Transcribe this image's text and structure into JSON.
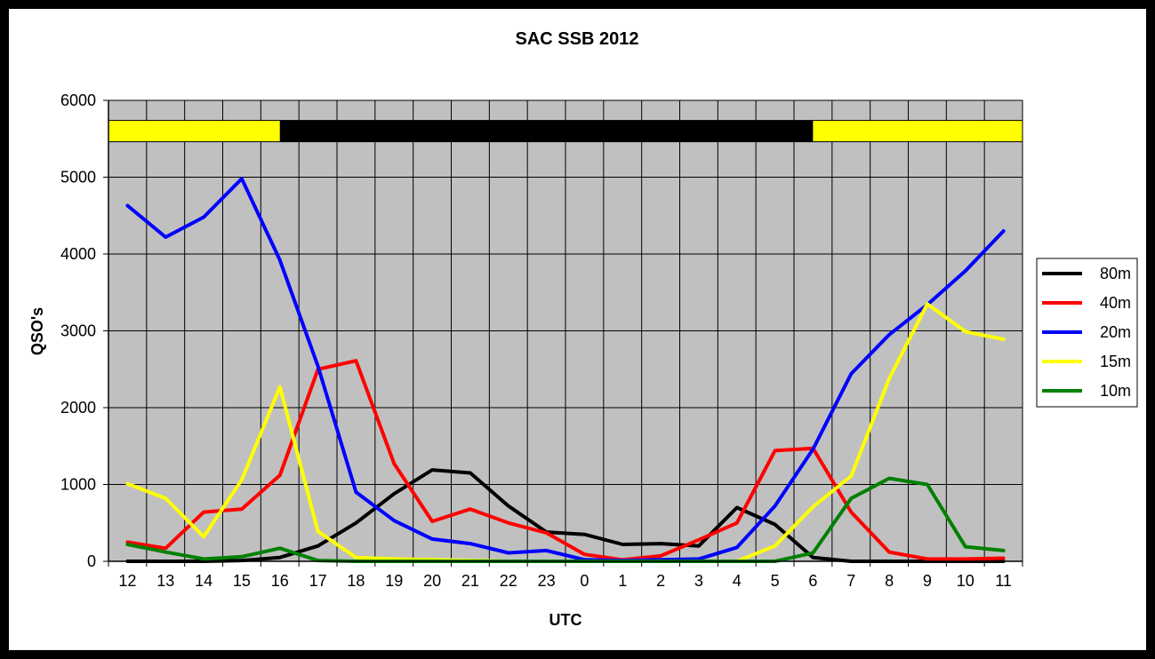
{
  "chart_data": {
    "type": "line",
    "title": "SAC SSB 2012",
    "xlabel": "UTC",
    "ylabel": "QSO's",
    "ylim": [
      0,
      6000
    ],
    "yticks": [
      "0",
      "1000",
      "2000",
      "3000",
      "4000",
      "5000",
      "6000"
    ],
    "categories": [
      "12",
      "13",
      "14",
      "15",
      "16",
      "17",
      "18",
      "19",
      "20",
      "21",
      "22",
      "23",
      "0",
      "1",
      "2",
      "3",
      "4",
      "5",
      "6",
      "7",
      "8",
      "9",
      "10",
      "11"
    ],
    "grid": true,
    "legend_position": "right",
    "daylight_bar": {
      "value": 5600,
      "segments": [
        {
          "from": "12",
          "to": "16",
          "color": "#ffff00",
          "label": "day"
        },
        {
          "from": "16",
          "to": "6",
          "color": "#000000",
          "label": "night"
        },
        {
          "from": "6",
          "to": "11",
          "color": "#ffff00",
          "label": "day"
        }
      ]
    },
    "series": [
      {
        "name": "80m",
        "color": "#000000",
        "values": [
          0,
          0,
          0,
          10,
          50,
          200,
          500,
          880,
          1190,
          1150,
          720,
          380,
          350,
          220,
          230,
          200,
          700,
          480,
          50,
          0,
          0,
          0,
          0,
          0
        ]
      },
      {
        "name": "40m",
        "color": "#ff0000",
        "values": [
          250,
          170,
          640,
          680,
          1120,
          2500,
          2610,
          1270,
          520,
          680,
          500,
          370,
          90,
          20,
          70,
          280,
          500,
          1440,
          1470,
          640,
          120,
          30,
          30,
          40
        ]
      },
      {
        "name": "20m",
        "color": "#0000ff",
        "values": [
          4630,
          4220,
          4480,
          4980,
          3920,
          2540,
          900,
          530,
          290,
          230,
          110,
          140,
          20,
          10,
          20,
          30,
          180,
          720,
          1460,
          2440,
          2950,
          3340,
          3780,
          4300
        ]
      },
      {
        "name": "15m",
        "color": "#ffff00",
        "values": [
          1010,
          820,
          320,
          1060,
          2270,
          390,
          50,
          30,
          20,
          10,
          0,
          0,
          0,
          0,
          0,
          0,
          0,
          200,
          710,
          1110,
          2380,
          3350,
          2990,
          2890
        ]
      },
      {
        "name": "10m",
        "color": "#008000",
        "values": [
          220,
          120,
          30,
          60,
          170,
          10,
          0,
          0,
          0,
          0,
          0,
          0,
          0,
          0,
          0,
          0,
          0,
          0,
          110,
          820,
          1080,
          1000,
          190,
          140
        ]
      }
    ]
  }
}
